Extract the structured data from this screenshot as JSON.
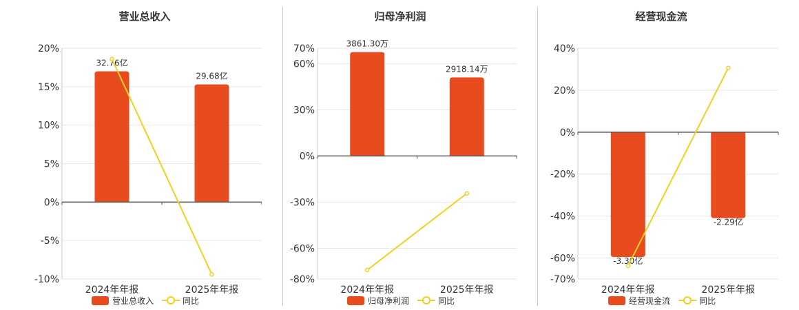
{
  "chart_data": [
    {
      "type": "bar",
      "title": "营业总收入",
      "categories": [
        "2024年年报",
        "2025年年报"
      ],
      "bar_series": {
        "name": "营业总收入",
        "heights_pct": [
          17.0,
          15.3
        ],
        "labels": [
          "32.76亿",
          "29.68亿"
        ],
        "color": "#e84c1e"
      },
      "line_series": {
        "name": "同比",
        "values": [
          18.6,
          -9.4
        ],
        "color": "#f0d21e"
      },
      "ylim": [
        -10,
        20
      ],
      "yticks": [
        -10,
        -5,
        0,
        5,
        10,
        15,
        20
      ],
      "ytick_labels": [
        "-10%",
        "-5%",
        "0%",
        "5%",
        "10%",
        "15%",
        "20%"
      ]
    },
    {
      "type": "bar",
      "title": "归母净利润",
      "categories": [
        "2024年年报",
        "2025年年报"
      ],
      "bar_series": {
        "name": "归母净利润",
        "heights_pct": [
          67.5,
          51.0
        ],
        "labels": [
          "3861.30万",
          "2918.14万"
        ],
        "color": "#e84c1e"
      },
      "line_series": {
        "name": "同比",
        "values": [
          -74.1,
          -24.4
        ],
        "color": "#f0d21e"
      },
      "ylim": [
        -80,
        70
      ],
      "yticks": [
        -80,
        -60,
        -30,
        0,
        30,
        60,
        70
      ],
      "ytick_labels": [
        "-80%",
        "-60%",
        "-30%",
        "0%",
        "30%",
        "60%",
        "70%"
      ]
    },
    {
      "type": "bar",
      "title": "经营现金流",
      "categories": [
        "2024年年报",
        "2025年年报"
      ],
      "bar_series": {
        "name": "经营现金流",
        "heights_pct": [
          -59.5,
          -41.0
        ],
        "labels": [
          "-3.30亿",
          "-2.29亿"
        ],
        "color": "#e84c1e"
      },
      "line_series": {
        "name": "同比",
        "values": [
          -63.8,
          30.6
        ],
        "color": "#f0d21e"
      },
      "ylim": [
        -70,
        40
      ],
      "yticks": [
        -70,
        -60,
        -40,
        -20,
        0,
        20,
        40
      ],
      "ytick_labels": [
        "-70%",
        "-60%",
        "-40%",
        "-20%",
        "0%",
        "20%",
        "40%"
      ]
    }
  ]
}
